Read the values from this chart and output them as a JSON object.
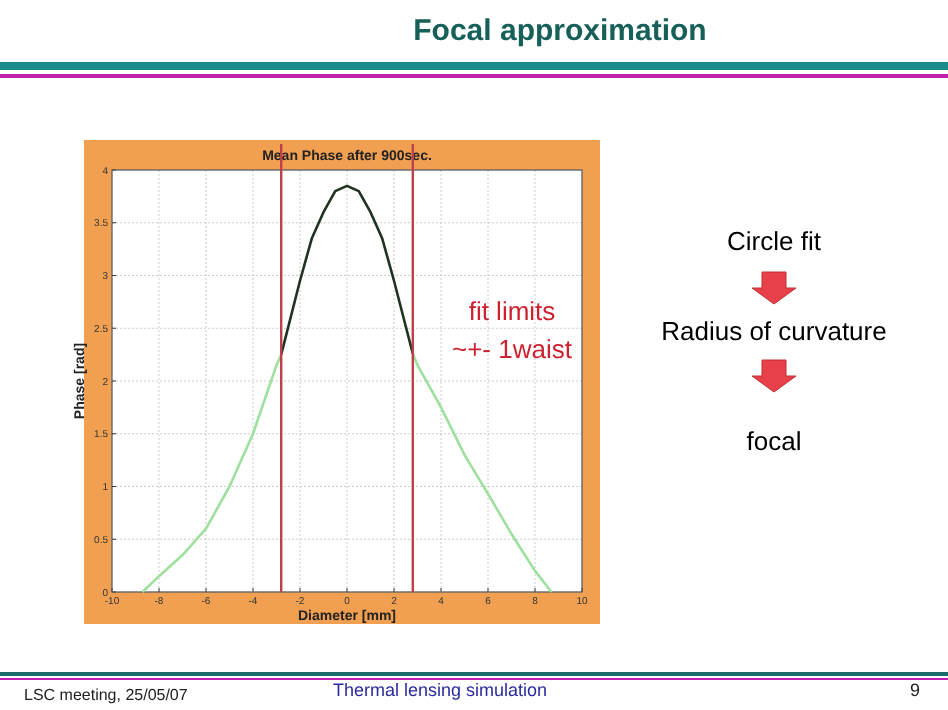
{
  "chart_data": {
    "type": "line",
    "title": "Focal approximation",
    "subtitle": "Mean Phase after 900sec.",
    "xlabel": "Diameter [mm]",
    "ylabel": "Phase [rad]",
    "xlim": [
      -10,
      10
    ],
    "xticks": [
      -10,
      -8,
      -6,
      -4,
      -2,
      0,
      2,
      4,
      6,
      8,
      10
    ],
    "ylim": [
      0,
      4
    ],
    "yticks": [
      0,
      0.5,
      1,
      1.5,
      2,
      2.5,
      3,
      3.5,
      4
    ],
    "grid": true,
    "line_style": "solid",
    "series": [
      {
        "color": "#9ee09e",
        "x": [
          -8.7,
          -8,
          -7,
          -6,
          -5,
          -4,
          -3,
          -2.8
        ],
        "values": [
          0,
          0.15,
          0.35,
          0.6,
          1.0,
          1.5,
          2.15,
          2.25
        ]
      },
      {
        "color": "#1e3320",
        "x": [
          -2.8,
          -2,
          -1.5,
          -1,
          -0.5,
          0,
          0.5,
          1,
          1.5,
          2,
          2.8
        ],
        "values": [
          2.25,
          2.95,
          3.35,
          3.6,
          3.8,
          3.85,
          3.8,
          3.6,
          3.35,
          2.95,
          2.26
        ]
      },
      {
        "color": "#9ee09e",
        "x": [
          2.8,
          3,
          4,
          5,
          6,
          7,
          8,
          8.7
        ],
        "values": [
          2.26,
          2.15,
          1.75,
          1.3,
          0.93,
          0.55,
          0.2,
          0
        ]
      }
    ],
    "ref_lines": [
      {
        "axis": "x",
        "value": -2.8,
        "color": "#c0404a"
      },
      {
        "axis": "x",
        "value": 2.8,
        "color": "#c0404a"
      }
    ],
    "annotations": [
      "fit limits\n~+- 1waist",
      "Circle fit",
      "Radius of curvature",
      "focal",
      "LSC meeting, 25/05/07",
      "Thermal lensing simulation",
      "9"
    ]
  }
}
